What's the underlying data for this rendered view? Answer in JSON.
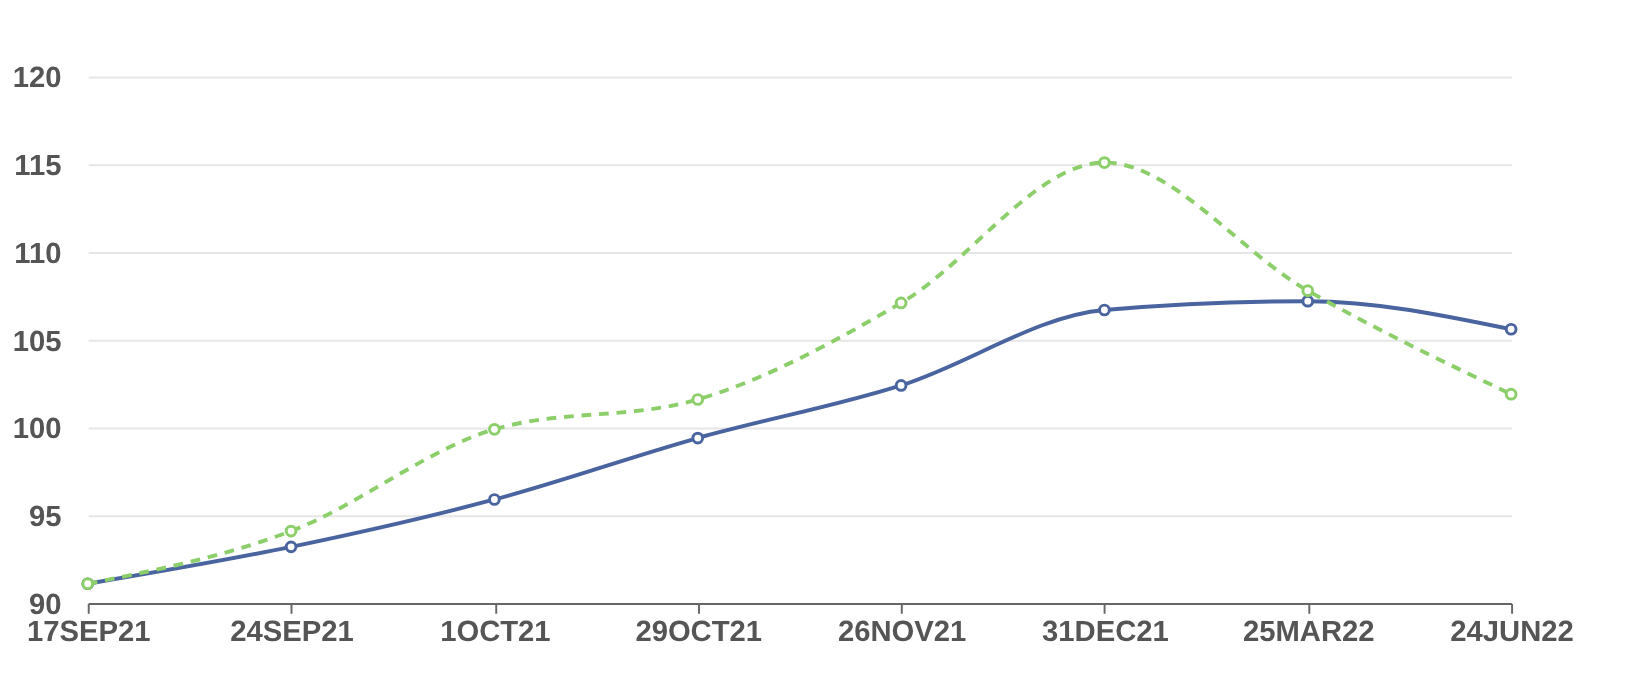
{
  "chart_data": {
    "type": "line",
    "categories": [
      "17SEP21",
      "24SEP21",
      "1OCT21",
      "29OCT21",
      "26NOV21",
      "31DEC21",
      "25MAR22",
      "24JUN22"
    ],
    "series": [
      {
        "color": "#4a64a0",
        "line_style": "solid",
        "values": [
          91.1,
          93.2,
          95.9,
          99.4,
          102.4,
          106.7,
          107.2,
          105.6
        ]
      },
      {
        "color": "#8ccf6a",
        "line_style": "dashed",
        "values": [
          91.1,
          94.1,
          99.9,
          101.6,
          107.1,
          115.1,
          107.8,
          101.9
        ]
      }
    ],
    "ylim": [
      90,
      120
    ],
    "yticks": [
      90,
      95,
      100,
      105,
      110,
      115,
      120
    ],
    "grid": "y",
    "marker": "circle"
  }
}
